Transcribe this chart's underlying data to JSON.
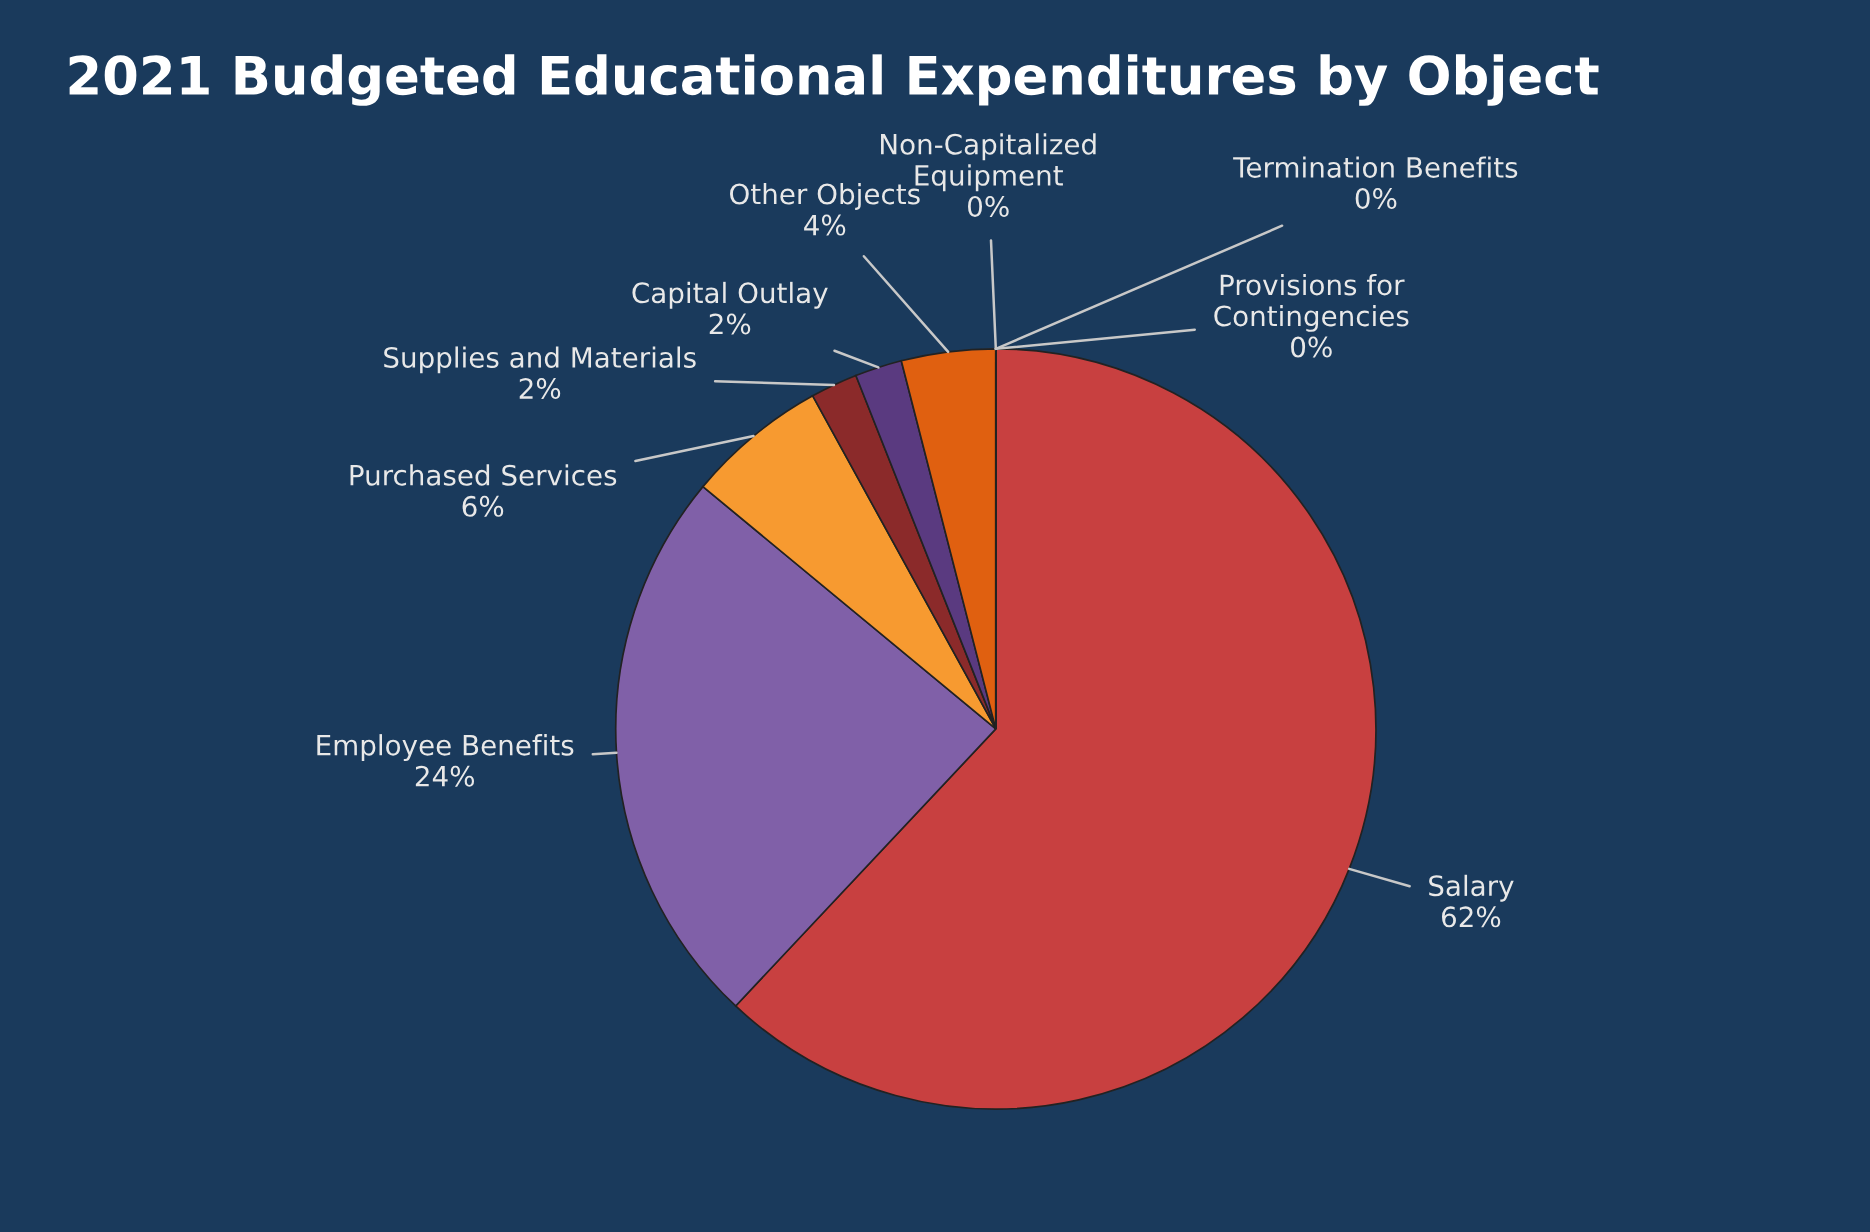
{
  "chart_data": {
    "type": "pie",
    "title": "2021 Budgeted Educational Expenditures by Object",
    "categories": [
      "Salary",
      "Employee Benefits",
      "Purchased Services",
      "Supplies and Materials",
      "Capital Outlay",
      "Other Objects",
      "Non-Capitalized\nEquipment",
      "Termination Benefits",
      "Provisions for\nContingencies"
    ],
    "values": [
      62,
      24,
      6,
      2,
      2,
      4,
      0,
      0,
      0
    ],
    "value_labels": [
      "62%",
      "24%",
      "6%",
      "2%",
      "2%",
      "4%",
      "0%",
      "0%",
      "0%"
    ],
    "colors": [
      "#c84040",
      "#8060a8",
      "#f79a30",
      "#8b2a2a",
      "#5a3a80",
      "#e06010",
      "#4a7ab0",
      "#9bbb59",
      "#4bacc6"
    ]
  }
}
